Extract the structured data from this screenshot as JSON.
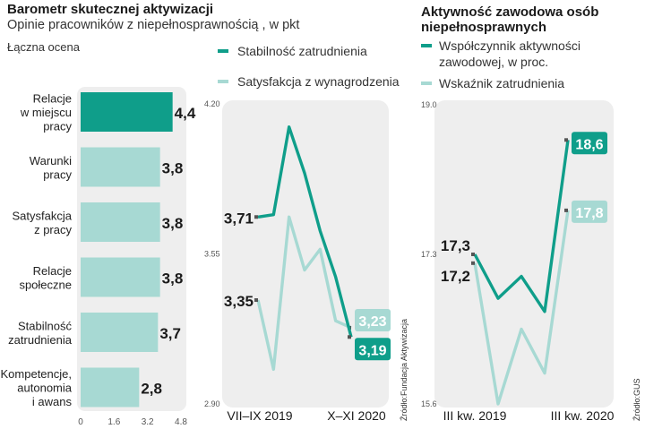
{
  "left": {
    "title": "Barometr skutecznej aktywizacji",
    "subtitle": "Opinie pracowników z niepełnosprawnością , w pkt",
    "overall_label": "Łączna ocena"
  },
  "right": {
    "title_line1": "Aktywność zawodowa osób",
    "title_line2": "niepełnosprawnych"
  },
  "sources": {
    "middle": "Źródło:Fundacja Aktywizacja",
    "right": "Źródło:GUS"
  },
  "colors": {
    "dark": "#0f9e8a",
    "light": "#a7d9d3",
    "panel": "#eeeeee"
  },
  "chart_data": [
    {
      "type": "bar",
      "orientation": "horizontal",
      "categories": [
        [
          "Relacje",
          "w miejscu",
          "pracy"
        ],
        [
          "Warunki",
          "pracy"
        ],
        [
          "Satysfakcja",
          "z pracy"
        ],
        [
          "Relacje",
          "społeczne"
        ],
        [
          "Stabilność",
          "zatrudnienia"
        ],
        [
          "Kompetencje,",
          "autonomia",
          "i awans"
        ]
      ],
      "values": [
        4.4,
        3.8,
        3.8,
        3.8,
        3.7,
        2.8
      ],
      "value_labels": [
        "4,4",
        "3,8",
        "3,8",
        "3,8",
        "3,7",
        "2,8"
      ],
      "highlight_index": 0,
      "xlim": [
        0,
        4.8
      ],
      "xticks": [
        0,
        1.6,
        3.2,
        4.8
      ],
      "xtick_labels": [
        "0",
        "1.6",
        "3.2",
        "4.8"
      ]
    },
    {
      "type": "line",
      "ylim": [
        2.9,
        4.2
      ],
      "yticks": [
        2.9,
        3.55,
        4.2
      ],
      "ytick_labels": [
        "2.90",
        "3.55",
        "4.20"
      ],
      "x_labels": [
        "VII–IX 2019",
        "X–XI 2020"
      ],
      "series": [
        {
          "name": "Stabilność zatrudnienia",
          "color": "dark",
          "values": [
            3.71,
            3.72,
            4.1,
            3.9,
            3.65,
            3.45,
            3.19
          ],
          "start_label": "3,71",
          "end_label": "3,19"
        },
        {
          "name": "Satysfakcja z wynagrodzenia",
          "color": "light",
          "values": [
            3.35,
            3.05,
            3.71,
            3.48,
            3.57,
            3.26,
            3.23
          ],
          "start_label": "3,35",
          "end_label": "3,23"
        }
      ]
    },
    {
      "type": "line",
      "ylim": [
        15.6,
        19.0
      ],
      "yticks": [
        15.6,
        17.3,
        19.0
      ],
      "ytick_labels": [
        "15.6",
        "17.3",
        "19.0"
      ],
      "x_labels": [
        "III kw. 2019",
        "III kw. 2020"
      ],
      "series": [
        {
          "name": "Współczynnik aktywności zawodowej, w proc.",
          "legend_lines": [
            "Współczynnik aktywności",
            "zawodowej, w proc."
          ],
          "color": "dark",
          "values": [
            17.3,
            16.8,
            17.05,
            16.65,
            18.6
          ],
          "start_label": "17,3",
          "end_label": "18,6"
        },
        {
          "name": "Wskaźnik zatrudnienia",
          "legend_lines": [
            "Wskaźnik zatrudnienia"
          ],
          "color": "light",
          "values": [
            17.2,
            15.6,
            16.45,
            15.95,
            17.8
          ],
          "start_label": "17,2",
          "end_label": "17,8"
        }
      ]
    }
  ]
}
